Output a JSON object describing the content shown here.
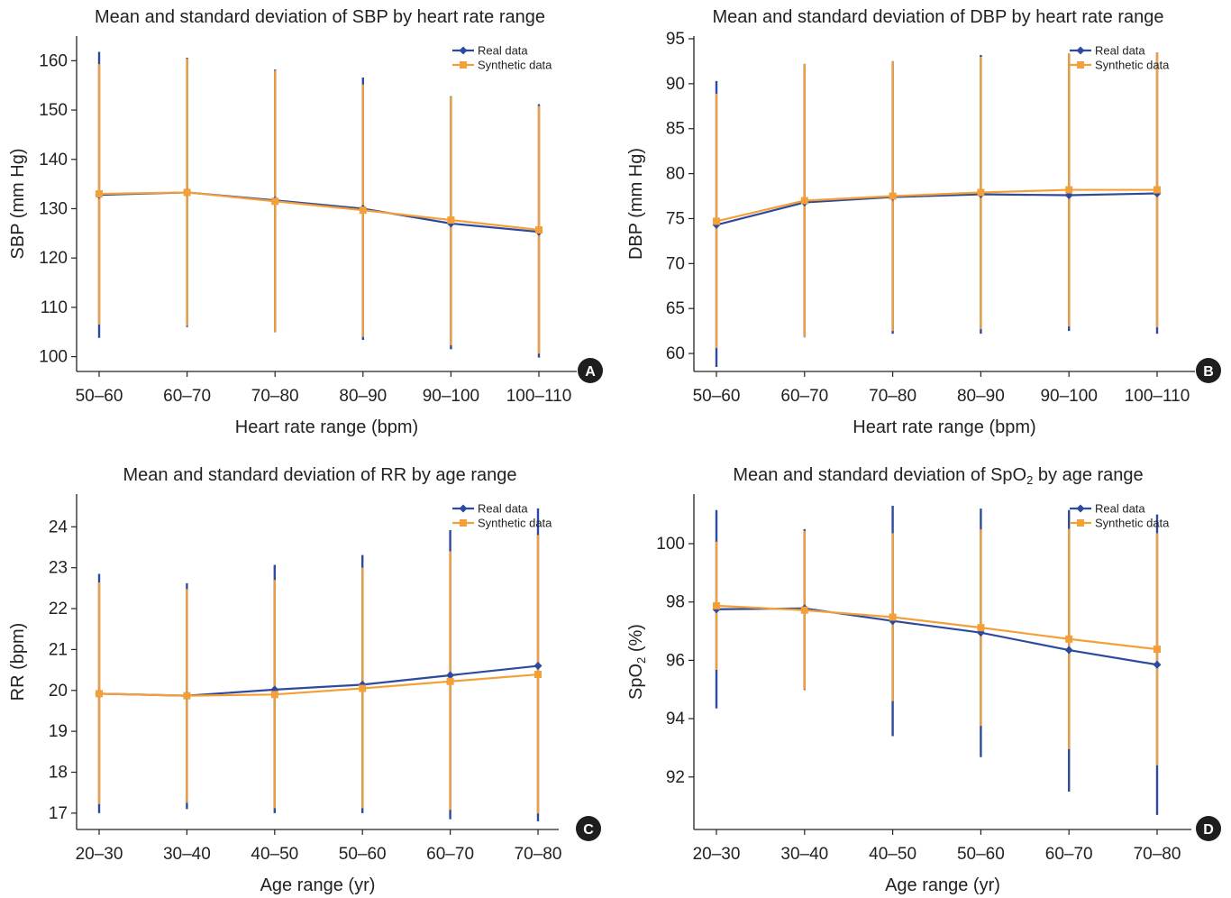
{
  "colors": {
    "real": "#2c4a9e",
    "synthetic": "#f4a03a",
    "axis": "#222222",
    "badge": "#1e1e1e"
  },
  "chart_data": [
    {
      "id": "A",
      "panel_label": "A",
      "type": "line",
      "title": "Mean and standard deviation of SBP by heart rate range",
      "xlabel": "Heart rate range (bpm)",
      "ylabel": "SBP (mm Hg)",
      "ylim": [
        97,
        165
      ],
      "yticks": [
        100,
        110,
        120,
        130,
        140,
        150,
        160
      ],
      "categories": [
        "50–60",
        "60–70",
        "70–80",
        "80–90",
        "90–100",
        "100–110"
      ],
      "grid": false,
      "legend": "top-right",
      "series": [
        {
          "name": "Real data",
          "color_key": "real",
          "marker": "diamond",
          "mean": [
            132.8,
            133.3,
            131.7,
            130.0,
            127.0,
            125.3
          ],
          "lower": [
            103.8,
            106.0,
            105.0,
            103.4,
            101.5,
            99.8
          ],
          "upper": [
            161.8,
            160.6,
            158.2,
            156.6,
            152.8,
            151.2
          ]
        },
        {
          "name": "Synthetic data",
          "color_key": "synthetic",
          "marker": "square",
          "mean": [
            133.0,
            133.3,
            131.5,
            129.7,
            127.7,
            125.7
          ],
          "lower": [
            106.5,
            106.2,
            104.9,
            104.0,
            102.3,
            100.6
          ],
          "upper": [
            159.3,
            160.4,
            158.0,
            155.2,
            152.7,
            150.8
          ]
        }
      ]
    },
    {
      "id": "B",
      "panel_label": "B",
      "type": "line",
      "title": "Mean and standard deviation of DBP by heart rate range",
      "xlabel": "Heart rate range (bpm)",
      "ylabel": "DBP (mm Hg)",
      "ylim": [
        58,
        95.3
      ],
      "yticks": [
        60,
        65,
        70,
        75,
        80,
        85,
        90,
        95
      ],
      "categories": [
        "50–60",
        "60–70",
        "70–80",
        "80–90",
        "90–100",
        "100–110"
      ],
      "grid": false,
      "legend": "top-right",
      "series": [
        {
          "name": "Real data",
          "color_key": "real",
          "marker": "diamond",
          "mean": [
            74.3,
            76.8,
            77.4,
            77.7,
            77.6,
            77.8
          ],
          "lower": [
            58.5,
            61.8,
            62.2,
            62.2,
            62.5,
            62.2
          ],
          "upper": [
            90.3,
            92.2,
            92.5,
            93.2,
            93.3,
            93.5
          ]
        },
        {
          "name": "Synthetic data",
          "color_key": "synthetic",
          "marker": "square",
          "mean": [
            74.7,
            77.0,
            77.5,
            77.9,
            78.2,
            78.2
          ],
          "lower": [
            60.6,
            61.8,
            62.5,
            62.7,
            63.0,
            62.9
          ],
          "upper": [
            88.9,
            92.2,
            92.5,
            93.0,
            93.4,
            93.5
          ]
        }
      ]
    },
    {
      "id": "C",
      "panel_label": "C",
      "type": "line",
      "title": "Mean and standard deviation of RR by age range",
      "xlabel": "Age range (yr)",
      "ylabel": "RR (bpm)",
      "ylim": [
        16.6,
        24.8
      ],
      "yticks": [
        17,
        18,
        19,
        20,
        21,
        22,
        23,
        24
      ],
      "categories": [
        "20–30",
        "30–40",
        "40–50",
        "50–60",
        "60–70",
        "70–80"
      ],
      "grid": false,
      "legend": "top-right",
      "series": [
        {
          "name": "Real data",
          "color_key": "real",
          "marker": "diamond",
          "mean": [
            19.92,
            19.87,
            20.02,
            20.14,
            20.37,
            20.6
          ],
          "lower": [
            17.0,
            17.1,
            17.0,
            17.0,
            16.85,
            16.8
          ],
          "upper": [
            22.85,
            22.62,
            23.07,
            23.31,
            23.92,
            24.45
          ]
        },
        {
          "name": "Synthetic data",
          "color_key": "synthetic",
          "marker": "square",
          "mean": [
            19.92,
            19.87,
            19.9,
            20.05,
            20.22,
            20.39
          ],
          "lower": [
            17.22,
            17.25,
            17.12,
            17.12,
            17.08,
            16.99
          ],
          "upper": [
            22.64,
            22.48,
            22.7,
            23.0,
            23.4,
            23.8
          ]
        }
      ]
    },
    {
      "id": "D",
      "panel_label": "D",
      "type": "line",
      "title": "Mean and standard deviation of SpO",
      "title_subscript": "2",
      "title_suffix": " by age range",
      "xlabel": "Age range (yr)",
      "ylabel": "SpO",
      "ylabel_subscript": "2",
      "ylabel_suffix": " (%)",
      "ylim": [
        90.2,
        101.7
      ],
      "yticks": [
        92,
        94,
        96,
        98,
        100
      ],
      "categories": [
        "20–30",
        "30–40",
        "40–50",
        "50–60",
        "60–70",
        "70–80"
      ],
      "grid": false,
      "legend": "top-right",
      "series": [
        {
          "name": "Real data",
          "color_key": "real",
          "marker": "diamond",
          "mean": [
            97.75,
            97.78,
            97.35,
            96.95,
            96.35,
            95.85
          ],
          "lower": [
            94.35,
            94.98,
            93.4,
            92.68,
            91.5,
            90.7
          ],
          "upper": [
            101.15,
            100.5,
            101.3,
            101.2,
            101.15,
            101.0
          ]
        },
        {
          "name": "Synthetic data",
          "color_key": "synthetic",
          "marker": "square",
          "mean": [
            97.87,
            97.72,
            97.48,
            97.12,
            96.73,
            96.38
          ],
          "lower": [
            95.67,
            95.0,
            94.6,
            93.75,
            92.95,
            92.4
          ],
          "upper": [
            100.07,
            100.44,
            100.36,
            100.49,
            100.51,
            100.36
          ]
        }
      ]
    }
  ]
}
